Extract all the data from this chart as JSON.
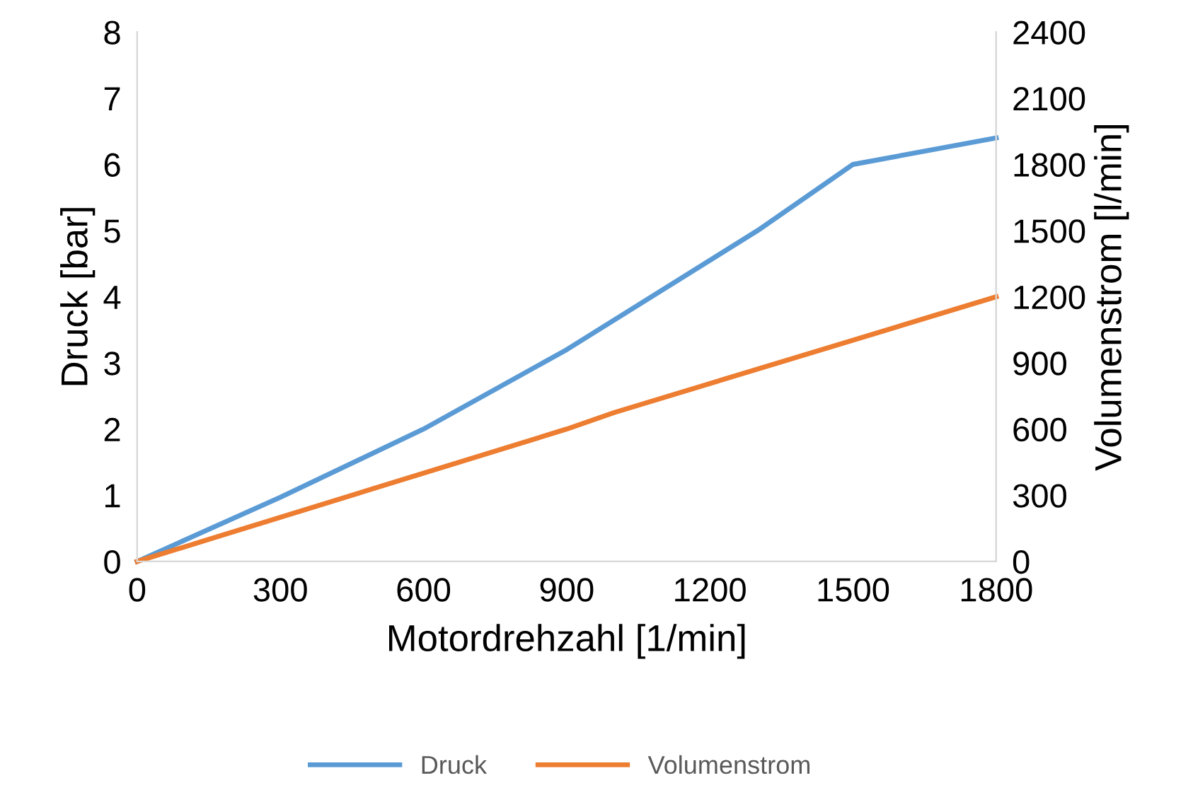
{
  "chart_data": {
    "type": "line",
    "xlabel": "Motordrehzahl [1/min]",
    "ylabel": "Druck [bar]",
    "y2label": "Volumenstrom [l/min]",
    "xlim": [
      0,
      1800
    ],
    "xticks": [
      0,
      300,
      600,
      900,
      1200,
      1500,
      1800
    ],
    "ylim": [
      0,
      8
    ],
    "yticks": [
      0,
      1,
      2,
      3,
      4,
      5,
      6,
      7,
      8
    ],
    "y2lim": [
      0,
      2400
    ],
    "y2ticks": [
      0,
      300,
      600,
      900,
      1200,
      1500,
      1800,
      2100,
      2400
    ],
    "grid": false,
    "legend": "bottom",
    "marker": "none",
    "line_style": "solid",
    "series": [
      {
        "name": "Druck",
        "color": "#5b9bd5",
        "x": [
          0,
          300,
          600,
          900,
          1300,
          1500,
          1800
        ],
        "values": [
          0,
          0.97,
          2.0,
          3.2,
          5.0,
          6.0,
          6.4
        ]
      },
      {
        "name": "Volumenstrom",
        "color": "#ed7d31",
        "axis": "y2",
        "x": [
          0,
          900,
          1000,
          1800
        ],
        "values": [
          0,
          600,
          675,
          1200
        ]
      }
    ]
  }
}
